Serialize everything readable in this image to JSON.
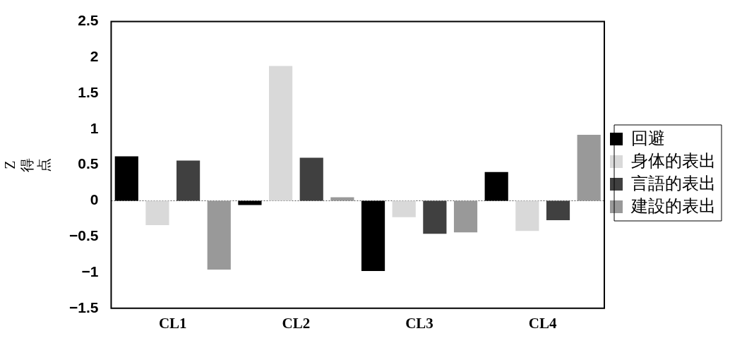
{
  "chart_data": {
    "type": "bar",
    "ylabel": "Z得点",
    "categories": [
      "CL1",
      "CL2",
      "CL3",
      "CL4"
    ],
    "series": [
      {
        "name": "回避",
        "color": "#000000",
        "values": [
          0.62,
          -0.06,
          -0.98,
          0.4
        ]
      },
      {
        "name": "身体的表出",
        "color": "#d9d9d9",
        "values": [
          -0.34,
          1.88,
          -0.23,
          -0.42
        ]
      },
      {
        "name": "言語的表出",
        "color": "#404040",
        "values": [
          0.56,
          0.6,
          -0.46,
          -0.27
        ]
      },
      {
        "name": "建設的表出",
        "color": "#999999",
        "values": [
          -0.96,
          0.05,
          -0.44,
          0.92
        ]
      }
    ],
    "ylim": [
      -1.5,
      2.5
    ],
    "yticks": [
      -1.5,
      -1,
      -0.5,
      0,
      0.5,
      1,
      1.5,
      2,
      2.5
    ],
    "grid": false,
    "ref_lines": [
      {
        "axis": "y",
        "value": 0,
        "color": "#555555",
        "line_style": "dotted"
      }
    ],
    "legend": "right"
  }
}
